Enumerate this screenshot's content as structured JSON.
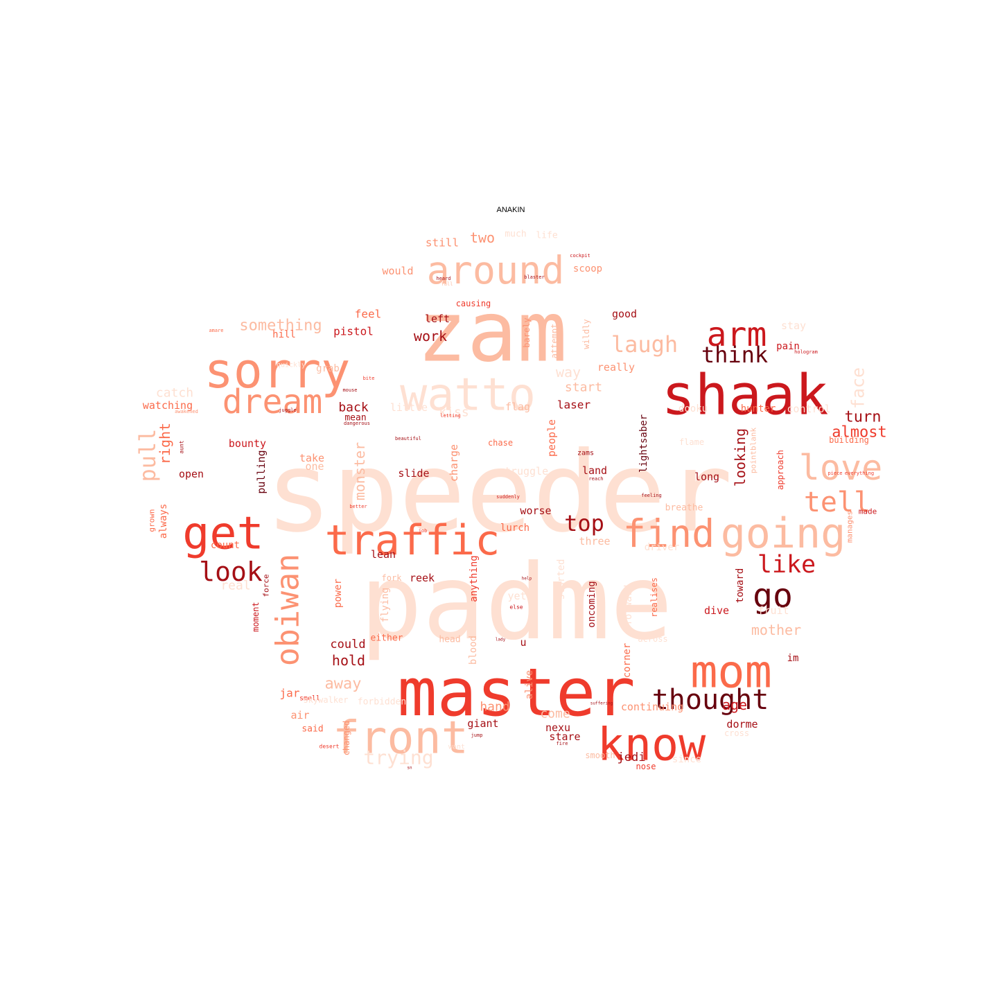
{
  "title": "ANAKIN",
  "colors": {
    "background": "#ffffff",
    "title": "#000000",
    "palette_note": "Reds colormap",
    "c1": "#fee0d2",
    "c2": "#fcbba1",
    "c3": "#fc9272",
    "c4": "#fb6a4a",
    "c5": "#ef3b2c",
    "c6": "#cb181d",
    "c7": "#a50f15",
    "c8": "#67000d"
  },
  "words": [
    "speeder",
    "padme",
    "zam",
    "master",
    "shaak",
    "sorry",
    "watto",
    "around",
    "know",
    "mom",
    "front",
    "traffic",
    "get",
    "going",
    "find",
    "love",
    "dream",
    "arm",
    "obiwan",
    "go",
    "tell",
    "thought",
    "look",
    "like",
    "laugh",
    "top",
    "pull",
    "think",
    "trying",
    "face",
    "something",
    "turn",
    "almost",
    "away",
    "looking",
    "right",
    "monster",
    "work",
    "two",
    "still",
    "feel",
    "left",
    "pistol",
    "good",
    "hill",
    "grab",
    "catch",
    "start",
    "laser",
    "watching",
    "back",
    "mean",
    "little",
    "kiss",
    "flag",
    "way",
    "really",
    "hunter",
    "control",
    "pain",
    "dooku",
    "building",
    "bounty",
    "take",
    "one",
    "open",
    "slide",
    "chase",
    "charge",
    "people",
    "lightsaber",
    "land",
    "zams",
    "long",
    "struggle",
    "pulling",
    "worse",
    "lurch",
    "three",
    "driver",
    "lean",
    "count",
    "always",
    "reek",
    "fork",
    "power",
    "flying",
    "anything",
    "started",
    "oncoming",
    "realises",
    "toward",
    "dive",
    "fruit",
    "mother",
    "could",
    "either",
    "head",
    "blood",
    "hold",
    "jar",
    "corner",
    "alive",
    "continuing",
    "age",
    "dorme",
    "air",
    "said",
    "changed",
    "giant",
    "come",
    "nexu",
    "stare",
    "jedi",
    "nose",
    "smooth",
    "since",
    "forbidden",
    "hand",
    "breathe",
    "flame",
    "approach",
    "made",
    "manages",
    "would",
    "much",
    "life",
    "scoop",
    "causing",
    "barely",
    "attempt",
    "wildly",
    "stay",
    "grown",
    "moment",
    "force",
    "u",
    "real",
    "yet",
    "forward",
    "across",
    "im",
    "cross",
    "smell",
    "want",
    "pointblank",
    "beautiful",
    "dangerous",
    "quickly",
    "bite",
    "aunt",
    "desert",
    "sn",
    "jump",
    "fire",
    "suffering",
    "lady",
    "help",
    "job",
    "else",
    "amare",
    "hologram",
    "reach",
    "feeling",
    "suddenly",
    "blaster",
    "cockpit",
    "heard",
    "fall",
    "piece",
    "everything",
    "awakened",
    "juggle",
    "letting",
    "mouse",
    "better",
    "skywalker",
    "mile"
  ]
}
